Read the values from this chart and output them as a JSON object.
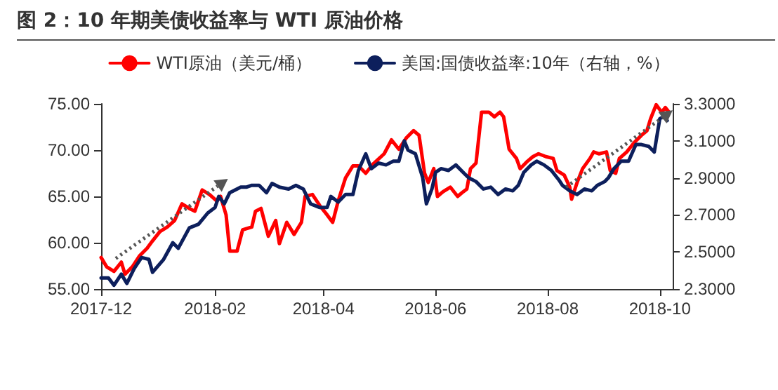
{
  "chart_data": {
    "type": "line",
    "title": "图 2：10 年期美债收益率与 WTI 原油价格",
    "series": [
      {
        "name": "WTI原油（美元/桶）",
        "color": "#ff0000",
        "x": [
          "2017-12-01",
          "2017-12-04",
          "2017-12-08",
          "2017-12-12",
          "2017-12-14",
          "2017-12-18",
          "2017-12-22",
          "2017-12-26",
          "2017-12-29",
          "2018-01-02",
          "2018-01-06",
          "2018-01-10",
          "2018-01-14",
          "2018-01-18",
          "2018-01-21",
          "2018-01-25",
          "2018-01-29",
          "2018-02-02",
          "2018-02-04",
          "2018-02-07",
          "2018-02-09",
          "2018-02-13",
          "2018-02-16",
          "2018-02-21",
          "2018-02-23",
          "2018-02-26",
          "2018-03-02",
          "2018-03-06",
          "2018-03-08",
          "2018-03-12",
          "2018-03-16",
          "2018-03-20",
          "2018-03-22",
          "2018-03-26",
          "2018-03-30",
          "2018-04-03",
          "2018-04-06",
          "2018-04-09",
          "2018-04-13",
          "2018-04-17",
          "2018-04-20",
          "2018-04-24",
          "2018-04-28",
          "2018-05-04",
          "2018-05-08",
          "2018-05-12",
          "2018-05-16",
          "2018-05-20",
          "2018-05-23",
          "2018-05-26",
          "2018-05-28",
          "2018-05-31",
          "2018-06-02",
          "2018-06-05",
          "2018-06-09",
          "2018-06-13",
          "2018-06-16",
          "2018-06-18",
          "2018-06-20",
          "2018-06-23",
          "2018-06-26",
          "2018-06-30",
          "2018-07-03",
          "2018-07-06",
          "2018-07-08",
          "2018-07-11",
          "2018-07-15",
          "2018-07-17",
          "2018-07-21",
          "2018-07-24",
          "2018-07-27",
          "2018-07-31",
          "2018-08-04",
          "2018-08-06",
          "2018-08-10",
          "2018-08-13",
          "2018-08-14",
          "2018-08-17",
          "2018-08-20",
          "2018-08-24",
          "2018-08-26",
          "2018-08-29",
          "2018-09-02",
          "2018-09-04",
          "2018-09-07",
          "2018-09-09",
          "2018-09-13",
          "2018-09-17",
          "2018-09-21",
          "2018-09-24",
          "2018-09-26",
          "2018-09-29",
          "2018-10-02",
          "2018-10-04",
          "2018-10-06"
        ],
        "values": [
          58.4,
          57.4,
          56.9,
          57.9,
          56.6,
          57.4,
          58.6,
          59.4,
          60.2,
          61.2,
          61.7,
          62.4,
          64.2,
          63.7,
          63.4,
          65.7,
          65.2,
          64.5,
          65.0,
          63.0,
          59.1,
          59.1,
          61.4,
          61.7,
          63.4,
          63.7,
          60.7,
          62.4,
          59.9,
          62.2,
          60.9,
          62.2,
          65.0,
          65.2,
          64.0,
          63.0,
          62.2,
          64.5,
          67.0,
          68.3,
          68.3,
          67.5,
          68.5,
          69.6,
          71.1,
          70.1,
          71.3,
          72.1,
          71.6,
          67.5,
          66.5,
          68.0,
          65.0,
          65.5,
          66.0,
          65.0,
          65.5,
          65.8,
          68.0,
          68.6,
          74.1,
          74.1,
          73.6,
          74.1,
          73.6,
          70.1,
          69.1,
          68.0,
          68.8,
          69.3,
          69.6,
          69.3,
          69.1,
          67.8,
          67.3,
          66.0,
          64.7,
          66.5,
          68.0,
          69.1,
          69.8,
          69.6,
          69.8,
          67.8,
          67.5,
          69.1,
          69.8,
          70.8,
          71.6,
          72.1,
          73.4,
          74.9,
          74.1,
          74.6,
          74.1
        ]
      },
      {
        "name": "美国:国债收益率:10年（右轴，%）",
        "color": "#0d1f5c",
        "axis": "y2",
        "x": [
          "2017-12-01",
          "2017-12-05",
          "2017-12-08",
          "2017-12-12",
          "2017-12-15",
          "2017-12-19",
          "2017-12-23",
          "2017-12-27",
          "2017-12-29",
          "2018-01-04",
          "2018-01-09",
          "2018-01-12",
          "2018-01-18",
          "2018-01-23",
          "2018-01-28",
          "2018-02-01",
          "2018-02-03",
          "2018-02-06",
          "2018-02-09",
          "2018-02-15",
          "2018-02-18",
          "2018-02-21",
          "2018-02-25",
          "2018-03-01",
          "2018-03-04",
          "2018-03-08",
          "2018-03-13",
          "2018-03-17",
          "2018-03-21",
          "2018-03-25",
          "2018-03-30",
          "2018-04-03",
          "2018-04-05",
          "2018-04-09",
          "2018-04-13",
          "2018-04-17",
          "2018-04-20",
          "2018-04-24",
          "2018-04-27",
          "2018-05-01",
          "2018-05-05",
          "2018-05-09",
          "2018-05-12",
          "2018-05-15",
          "2018-05-17",
          "2018-05-21",
          "2018-05-25",
          "2018-05-27",
          "2018-05-30",
          "2018-06-01",
          "2018-06-04",
          "2018-06-08",
          "2018-06-12",
          "2018-06-16",
          "2018-06-19",
          "2018-06-23",
          "2018-06-27",
          "2018-07-01",
          "2018-07-05",
          "2018-07-09",
          "2018-07-13",
          "2018-07-16",
          "2018-07-19",
          "2018-07-23",
          "2018-07-26",
          "2018-07-30",
          "2018-08-03",
          "2018-08-07",
          "2018-08-09",
          "2018-08-13",
          "2018-08-17",
          "2018-08-21",
          "2018-08-25",
          "2018-08-28",
          "2018-09-01",
          "2018-09-03",
          "2018-09-06",
          "2018-09-10",
          "2018-09-14",
          "2018-09-18",
          "2018-09-21",
          "2018-09-25",
          "2018-09-28",
          "2018-10-01",
          "2018-10-03",
          "2018-10-05"
        ],
        "values": [
          2.36,
          2.36,
          2.32,
          2.38,
          2.33,
          2.41,
          2.47,
          2.46,
          2.39,
          2.46,
          2.55,
          2.52,
          2.63,
          2.65,
          2.71,
          2.74,
          2.8,
          2.76,
          2.82,
          2.85,
          2.85,
          2.86,
          2.86,
          2.82,
          2.87,
          2.85,
          2.84,
          2.86,
          2.84,
          2.76,
          2.74,
          2.74,
          2.8,
          2.77,
          2.81,
          2.81,
          2.94,
          3.03,
          2.95,
          2.98,
          2.97,
          2.99,
          2.99,
          3.1,
          3.05,
          3.03,
          2.9,
          2.76,
          2.84,
          2.93,
          2.95,
          2.94,
          2.97,
          2.93,
          2.9,
          2.88,
          2.84,
          2.85,
          2.81,
          2.84,
          2.83,
          2.86,
          2.93,
          2.97,
          2.99,
          2.97,
          2.94,
          2.89,
          2.86,
          2.83,
          2.81,
          2.84,
          2.83,
          2.86,
          2.88,
          2.9,
          2.95,
          2.99,
          2.99,
          3.08,
          3.08,
          3.07,
          3.04,
          3.22,
          3.23,
          3.21
        ]
      }
    ],
    "xlim": [
      "2017-12-01",
      "2018-10-08"
    ],
    "xticks": [
      "2017-12",
      "2018-02",
      "2018-04",
      "2018-06",
      "2018-08",
      "2018-10"
    ],
    "ylim": [
      55,
      75
    ],
    "yticks": [
      {
        "value": 55,
        "label": "55.00"
      },
      {
        "value": 60,
        "label": "60.00"
      },
      {
        "value": 65,
        "label": "65.00"
      },
      {
        "value": 70,
        "label": "70.00"
      },
      {
        "value": 75,
        "label": "75.00"
      }
    ],
    "y2lim": [
      2.3,
      3.3
    ],
    "y2ticks": [
      {
        "value": 2.3,
        "label": "2.3000"
      },
      {
        "value": 2.5,
        "label": "2.5000"
      },
      {
        "value": 2.7,
        "label": "2.7000"
      },
      {
        "value": 2.9,
        "label": "2.9000"
      },
      {
        "value": 3.1,
        "label": "3.1000"
      },
      {
        "value": 3.3,
        "label": "3.3000"
      }
    ],
    "grid": false,
    "legend": "top",
    "marker": "none",
    "line_style": "solid"
  }
}
